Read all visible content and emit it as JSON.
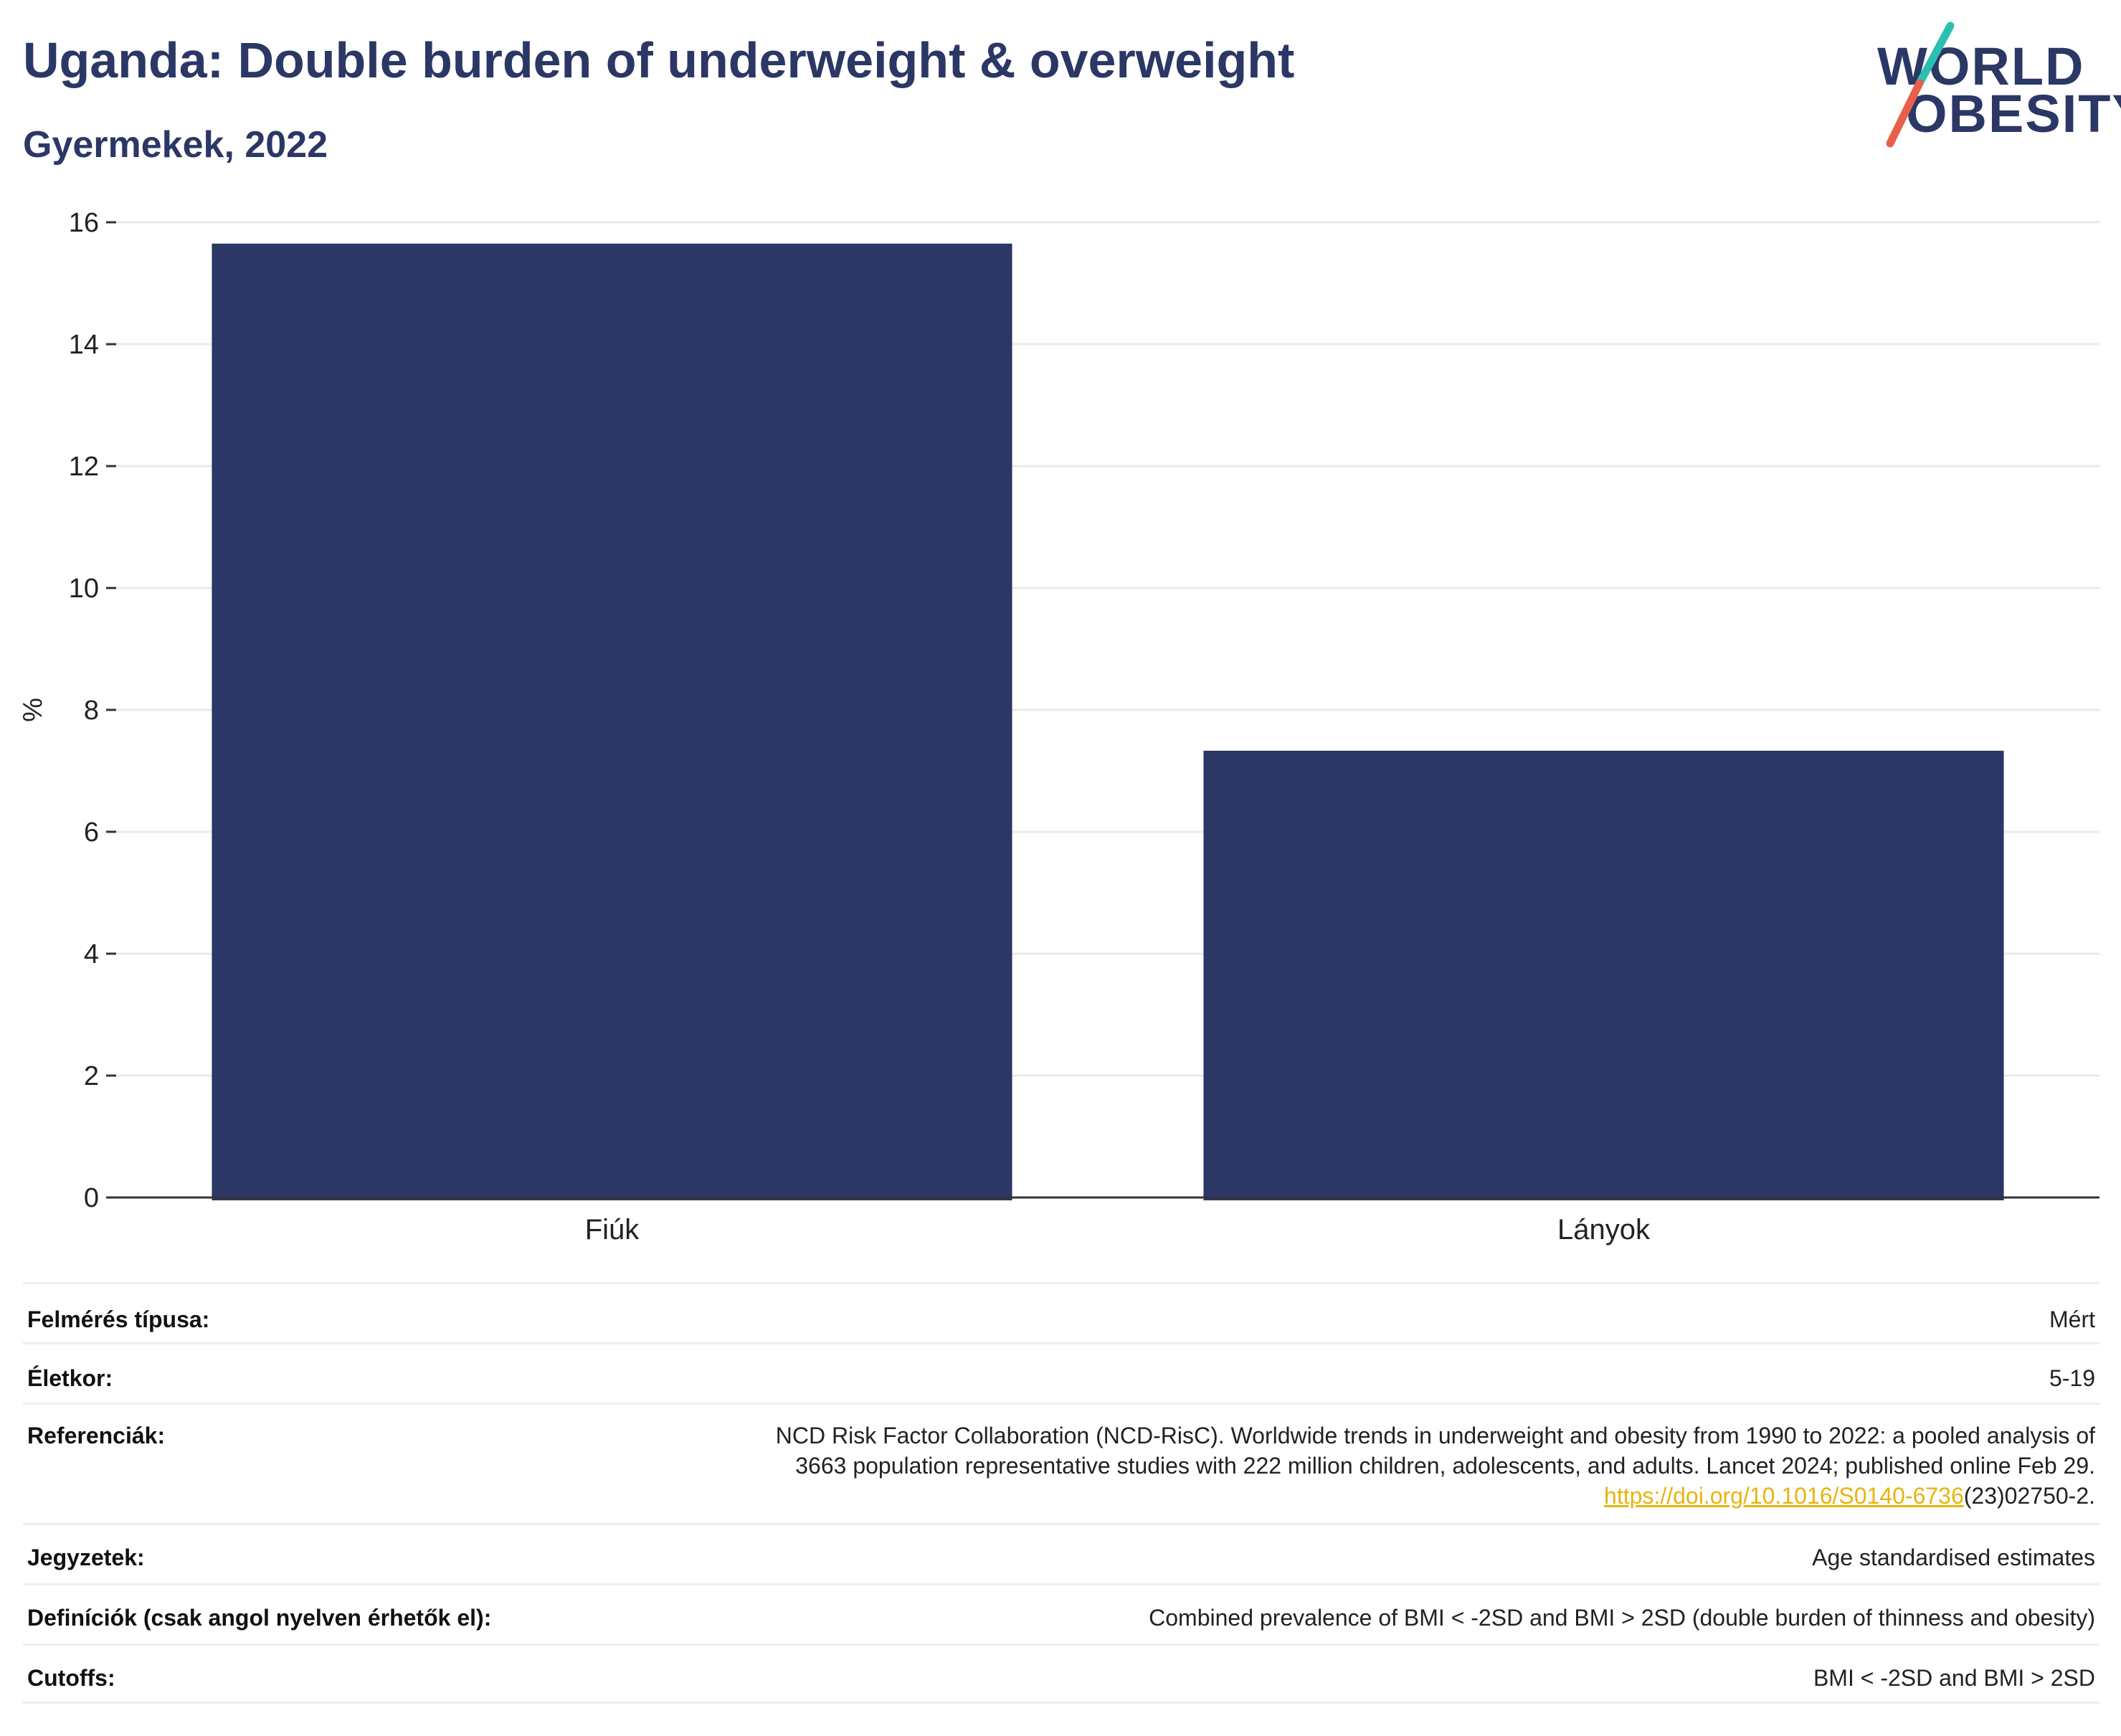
{
  "header": {
    "title": "Uganda: Double burden of underweight & overweight",
    "subtitle": "Gyermekek, 2022"
  },
  "logo": {
    "line1": "WORLD",
    "line2": "OBESITY",
    "slash_top_color": "#2bbfb3",
    "slash_bottom_color": "#e8604c"
  },
  "chart_data": {
    "type": "bar",
    "categories": [
      "Fiúk",
      "Lányok"
    ],
    "values": [
      15.65,
      7.33
    ],
    "ylabel": "%",
    "xlabel": "",
    "ylim": [
      0,
      16
    ],
    "yticks": [
      0,
      2,
      4,
      6,
      8,
      10,
      12,
      14,
      16
    ],
    "grid": true,
    "bar_color": "#2b3765"
  },
  "meta": {
    "rows": [
      {
        "label": "Felmérés típusa:",
        "value": "Mért"
      },
      {
        "label": "Életkor:",
        "value": "5-19"
      },
      {
        "label": "Referenciák:",
        "value_line1": "NCD Risk Factor Collaboration (NCD-RisC). Worldwide trends in underweight and obesity from 1990 to 2022: a pooled analysis of",
        "value_line2": "3663 population representative studies with 222 million children, adolescents, and adults. Lancet 2024; published online Feb 29.",
        "doi_link": "https://doi.org/10.1016/S0140-6736",
        "doi_suffix": "(23)02750-2."
      },
      {
        "label": "Jegyzetek:",
        "value": "Age standardised estimates"
      },
      {
        "label": "Definíciók (csak angol nyelven érhetők el):",
        "value": "Combined prevalence of BMI < -2SD and BMI > 2SD (double burden of thinness and obesity)"
      },
      {
        "label": "Cutoffs:",
        "value": "BMI < -2SD and BMI > 2SD"
      }
    ]
  }
}
